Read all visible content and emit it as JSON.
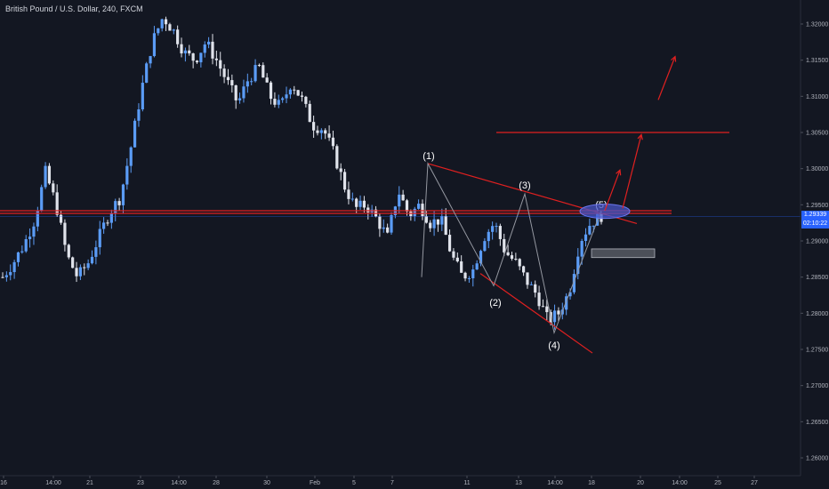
{
  "header": {
    "title": "British Pound / U.S. Dollar, 240, FXCM"
  },
  "price_axis": {
    "current_price": "1.29339",
    "countdown": "02:10:22"
  },
  "colors": {
    "background": "#131722",
    "bull_candle": "#5b9cf6",
    "bear_candle": "#e0e3eb",
    "annotation_line": "#e02020",
    "price_tag": "#2962ff",
    "ellipse_fill": "#4a56c6",
    "box_fill": "#7c7f86"
  },
  "chart_data": {
    "type": "candlestick",
    "instrument": "British Pound / U.S. Dollar",
    "timeframe": "240",
    "source": "FXCM",
    "x_tick_labels": [
      "16",
      "14:00",
      "21",
      "23",
      "14:00",
      "28",
      "30",
      "Feb",
      "5",
      "7",
      "11",
      "13",
      "14:00",
      "18",
      "20",
      "14:00",
      "25",
      "27"
    ],
    "y_tick_labels": [
      "1.32000",
      "1.31500",
      "1.31000",
      "1.30500",
      "1.30000",
      "1.29500",
      "1.29000",
      "1.28500",
      "1.28000",
      "1.27500",
      "1.27000",
      "1.26500",
      "1.26000"
    ],
    "ylim": [
      1.2585,
      1.3235
    ],
    "last_price": 1.29339,
    "wave_labels": [
      "(1)",
      "(2)",
      "(3)",
      "(4)",
      "(5)"
    ],
    "wave_prices": [
      1.3007,
      1.2825,
      1.2962,
      1.2773,
      1.2942
    ],
    "wave_pattern_anchors": [
      1.3007,
      1.2838,
      1.2965,
      1.2773,
      1.2942
    ],
    "horizontal_levels": [
      1.294,
      1.305
    ],
    "trendline_upper": {
      "from": 1.3007,
      "to": 1.2924
    },
    "trendline_lower": {
      "from": 1.2855,
      "to": 1.2745
    },
    "projection_arrow_targets": [
      1.2998,
      1.3047,
      1.3155
    ],
    "zone_box": {
      "top": 1.2889,
      "bottom": 1.2877
    },
    "price_path": [
      1.285,
      1.287,
      1.2895,
      1.293,
      1.2995,
      1.295,
      1.288,
      1.285,
      1.287,
      1.2905,
      1.294,
      1.296,
      1.303,
      1.311,
      1.3175,
      1.321,
      1.319,
      1.316,
      1.315,
      1.3175,
      1.315,
      1.312,
      1.309,
      1.3125,
      1.314,
      1.31,
      1.3085,
      1.312,
      1.3095,
      1.306,
      1.3055,
      1.302,
      1.2975,
      1.2945,
      1.295,
      1.293,
      1.2905,
      1.297,
      1.2935,
      1.295,
      1.2925,
      1.293,
      1.288,
      1.285,
      1.286,
      1.2905,
      1.2925,
      1.2885,
      1.287,
      1.2845,
      1.2825,
      1.279,
      1.28,
      1.283,
      1.29,
      1.2925,
      1.2935
    ]
  }
}
